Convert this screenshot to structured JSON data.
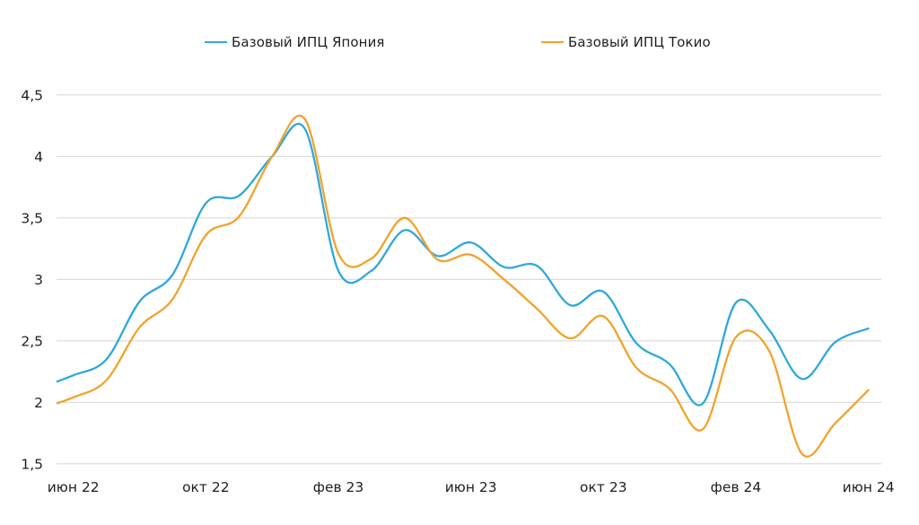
{
  "legend": {
    "items": [
      {
        "label": "Базовый ИПЦ Япония",
        "color": "#2FA8DC"
      },
      {
        "label": "Базовый ИПЦ Токио",
        "color": "#F0A32C"
      }
    ]
  },
  "chart_data": {
    "type": "line",
    "smooth": true,
    "grid": "horizontal",
    "legend_position": "top",
    "x": [
      "2022-05",
      "2022-06",
      "2022-07",
      "2022-08",
      "2022-09",
      "2022-10",
      "2022-11",
      "2022-12",
      "2023-01",
      "2023-02",
      "2023-03",
      "2023-04",
      "2023-05",
      "2023-06",
      "2023-07",
      "2023-08",
      "2023-09",
      "2023-10",
      "2023-11",
      "2023-12",
      "2024-01",
      "2024-02",
      "2024-03",
      "2024-04",
      "2024-05",
      "2024-06"
    ],
    "series": [
      {
        "name": "Базовый ИПЦ Япония",
        "color": "#2FA8DC",
        "values": [
          2.12,
          2.22,
          2.35,
          2.82,
          3.04,
          3.62,
          3.68,
          4.0,
          4.22,
          3.07,
          3.07,
          3.4,
          3.19,
          3.3,
          3.1,
          3.11,
          2.79,
          2.9,
          2.48,
          2.31,
          1.99,
          2.81,
          2.59,
          2.19,
          2.49,
          2.6
        ]
      },
      {
        "name": "Базовый ИПЦ Токио",
        "color": "#F0A32C",
        "values": [
          1.95,
          2.04,
          2.18,
          2.61,
          2.84,
          3.36,
          3.51,
          4.0,
          4.3,
          3.21,
          3.17,
          3.5,
          3.16,
          3.2,
          3.0,
          2.76,
          2.52,
          2.7,
          2.28,
          2.11,
          1.78,
          2.53,
          2.42,
          1.58,
          1.83,
          2.1
        ]
      }
    ],
    "ylim": [
      1.5,
      4.5
    ],
    "y_ticks": [
      4.5,
      4.0,
      3.5,
      3.0,
      2.5,
      2.0,
      1.5
    ],
    "y_tick_labels": [
      "4,5",
      "4",
      "3,5",
      "3",
      "2,5",
      "2",
      "1,5"
    ],
    "x_tick_labels": [
      {
        "index": 1,
        "label": "июн 22"
      },
      {
        "index": 5,
        "label": "окт 22"
      },
      {
        "index": 9,
        "label": "фев 23"
      },
      {
        "index": 13,
        "label": "июн 23"
      },
      {
        "index": 17,
        "label": "окт 23"
      },
      {
        "index": 21,
        "label": "фев 24"
      },
      {
        "index": 25,
        "label": "июн 24"
      }
    ],
    "grid_color": "#D8D8D8"
  }
}
